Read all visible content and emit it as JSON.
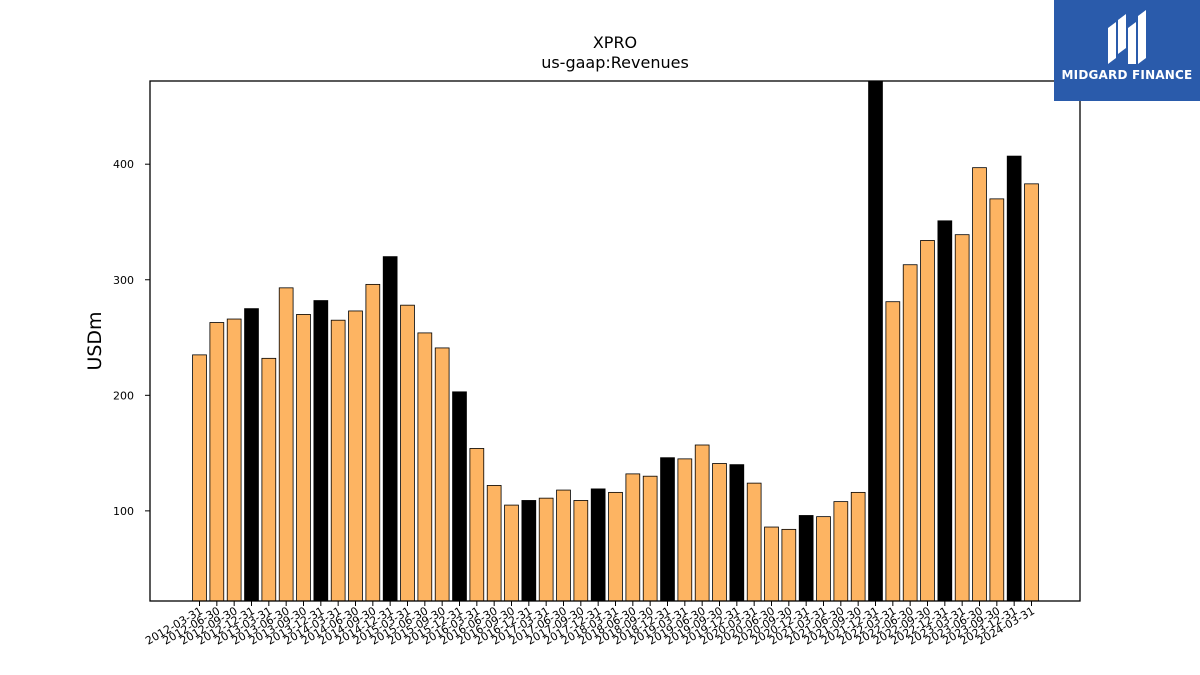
{
  "logo": {
    "text": "MIDGARD FINANCE",
    "background": "#2a5bab"
  },
  "chart_data": {
    "type": "bar",
    "title": "XPRO",
    "subtitle": "us-gaap:Revenues",
    "xlabel": "",
    "ylabel": "USDm",
    "ylim": [
      22,
      472
    ],
    "yticks": [
      100,
      200,
      300,
      400
    ],
    "grid": false,
    "colors": {
      "quarter": "#fdb462",
      "year_end": "#000000",
      "edge": "#000000"
    },
    "categories": [
      "2012-03-31",
      "2012-06-30",
      "2012-09-30",
      "2012-12-31",
      "2013-03-31",
      "2013-06-30",
      "2013-09-30",
      "2013-12-31",
      "2014-03-31",
      "2014-06-30",
      "2014-09-30",
      "2014-12-31",
      "2015-03-31",
      "2015-06-30",
      "2015-09-30",
      "2015-12-31",
      "2016-03-31",
      "2016-06-30",
      "2016-09-30",
      "2016-12-31",
      "2017-03-31",
      "2017-06-30",
      "2017-09-30",
      "2017-12-31",
      "2018-03-31",
      "2018-06-30",
      "2018-09-30",
      "2018-12-31",
      "2019-03-31",
      "2019-06-30",
      "2019-09-30",
      "2019-12-31",
      "2020-03-31",
      "2020-06-30",
      "2020-09-30",
      "2020-12-31",
      "2021-03-31",
      "2021-06-30",
      "2021-09-30",
      "2021-12-31",
      "2022-03-31",
      "2022-06-30",
      "2022-09-30",
      "2022-12-31",
      "2023-03-31",
      "2023-06-30",
      "2023-09-30",
      "2023-12-31",
      "2024-03-31"
    ],
    "values": [
      235,
      263,
      266,
      275,
      232,
      293,
      270,
      282,
      265,
      273,
      296,
      320,
      278,
      254,
      241,
      203,
      154,
      122,
      105,
      109,
      111,
      118,
      109,
      119,
      116,
      132,
      130,
      146,
      145,
      157,
      141,
      140,
      124,
      86,
      84,
      96,
      95,
      108,
      116,
      472,
      281,
      313,
      334,
      351,
      339,
      397,
      370,
      407,
      383
    ],
    "year_end": [
      false,
      false,
      false,
      true,
      false,
      false,
      false,
      true,
      false,
      false,
      false,
      true,
      false,
      false,
      false,
      true,
      false,
      false,
      false,
      true,
      false,
      false,
      false,
      true,
      false,
      false,
      false,
      true,
      false,
      false,
      false,
      true,
      false,
      false,
      false,
      true,
      false,
      false,
      false,
      true,
      false,
      false,
      false,
      true,
      false,
      false,
      false,
      true,
      false
    ]
  }
}
